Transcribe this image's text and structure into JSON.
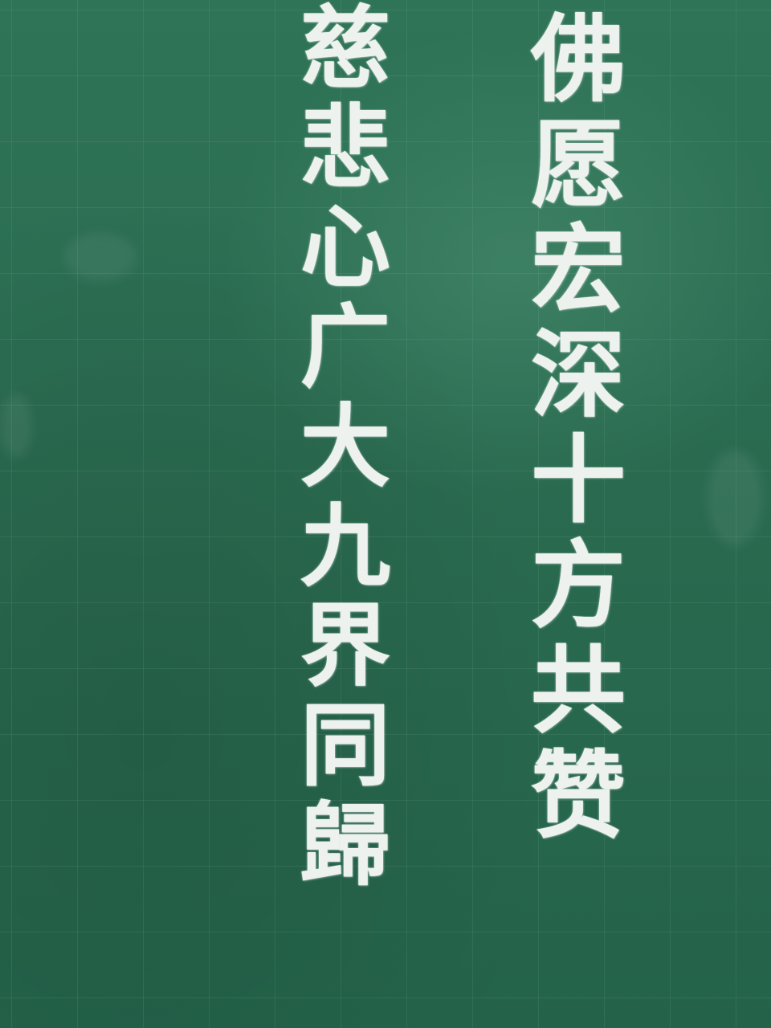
{
  "board": {
    "background_color": "#2a6b50",
    "chalk_color": "#eef2ee"
  },
  "couplet": {
    "right_line": [
      "佛",
      "愿",
      "宏",
      "深",
      "十",
      "方",
      "共",
      "赞"
    ],
    "left_line": [
      "慈",
      "悲",
      "心",
      "广",
      "大",
      "九",
      "界",
      "同",
      "歸"
    ],
    "top_partial_char": "慈"
  }
}
